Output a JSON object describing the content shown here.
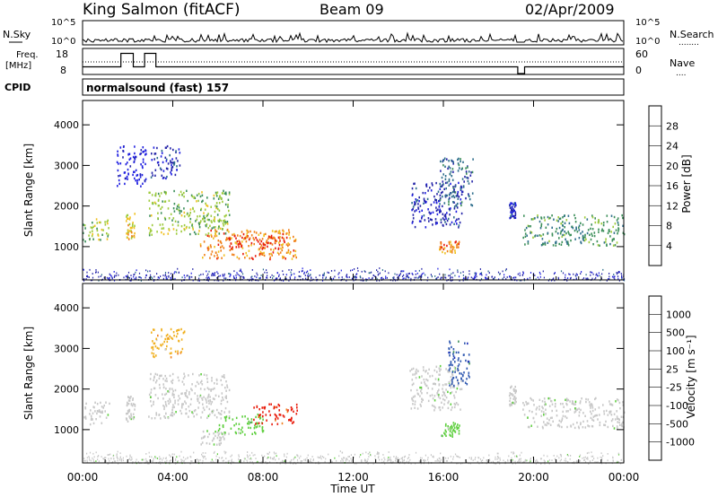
{
  "header": {
    "station": "King Salmon (fitACF)",
    "beam": "Beam 09",
    "date": "02/Apr/2009",
    "cpid_label": "CPID",
    "cpid_value": "normalsound (fast) 157"
  },
  "labels": {
    "nsky": "N.Sky",
    "nsearch": "N.Search",
    "nsearch_dots": "........",
    "freq": "Freq.",
    "mhz": "[MHz]",
    "nave": "Nave",
    "nave_dots": "....",
    "nsky_ticks": [
      "10^5",
      "10^0"
    ],
    "nsearch_ticks": [
      "10^5",
      "10^0"
    ],
    "freq_ticks": [
      "18",
      "8"
    ],
    "nave_ticks": [
      "60",
      "0"
    ]
  },
  "colors": {
    "power": [
      "#1f1fe0",
      "#2424a8",
      "#2e6e8c",
      "#3c8f5a",
      "#9ecb3c",
      "#f0c020",
      "#f07f18",
      "#e81c0c"
    ],
    "velocity": [
      "#1f2fb8",
      "#2f58b0",
      "#3f8f5a",
      "#5fcf3f",
      "#c8c8c8",
      "#c8c8c8",
      "#f0b020",
      "#f08020",
      "#e81c0c"
    ],
    "ground_scatter": "#c0c0c0"
  },
  "chart_data": [
    {
      "type": "heatmap",
      "panel": "power",
      "ylabel": "Slant Range [km]",
      "colorbar_label": "Power [dB]",
      "colorbar_ticks": [
        "4",
        "8",
        "12",
        "16",
        "20",
        "24",
        "28"
      ],
      "xlim": [
        0,
        24
      ],
      "ylim": [
        180,
        4600
      ],
      "y_ticks": [
        "1000",
        "2000",
        "3000",
        "4000"
      ],
      "regions": [
        {
          "t0": 0.0,
          "t1": 1.2,
          "r0": 1150,
          "r1": 1700,
          "level": 4
        },
        {
          "t0": 1.9,
          "t1": 2.3,
          "r0": 1200,
          "r1": 1850,
          "level": 5
        },
        {
          "t0": 2.9,
          "t1": 6.5,
          "r0": 1300,
          "r1": 2400,
          "level": 4
        },
        {
          "t0": 3.0,
          "t1": 4.3,
          "r0": 2700,
          "r1": 3500,
          "level": 1
        },
        {
          "t0": 1.5,
          "t1": 2.8,
          "r0": 2500,
          "r1": 3500,
          "level": 0
        },
        {
          "t0": 5.2,
          "t1": 9.5,
          "r0": 700,
          "r1": 1450,
          "level": 6
        },
        {
          "t0": 6.5,
          "t1": 9.0,
          "r0": 950,
          "r1": 1300,
          "level": 7
        },
        {
          "t0": 14.5,
          "t1": 16.8,
          "r0": 1500,
          "r1": 2600,
          "level": 1
        },
        {
          "t0": 15.8,
          "t1": 17.3,
          "r0": 2000,
          "r1": 3200,
          "level": 2
        },
        {
          "t0": 15.8,
          "t1": 16.7,
          "r0": 850,
          "r1": 1150,
          "level": 6
        },
        {
          "t0": 18.9,
          "t1": 19.2,
          "r0": 1700,
          "r1": 2100,
          "level": 1
        },
        {
          "t0": 19.5,
          "t1": 24.0,
          "r0": 1050,
          "r1": 1800,
          "level": 3
        }
      ],
      "noise_band": {
        "r0": 180,
        "r1": 500
      }
    },
    {
      "type": "heatmap",
      "panel": "velocity",
      "xlabel": "Time UT",
      "ylabel": "Slant Range [km]",
      "colorbar_label": "Velocity [m s⁻¹]",
      "colorbar_ticks": [
        "1000",
        "500",
        "100",
        "25",
        "-25",
        "-100",
        "-500",
        "-1000"
      ],
      "xlim": [
        0,
        24
      ],
      "ylim": [
        180,
        4600
      ],
      "x_ticks": [
        "00:00",
        "04:00",
        "08:00",
        "12:00",
        "16:00",
        "20:00",
        "00:00"
      ],
      "y_ticks": [
        "1000",
        "2000",
        "3000",
        "4000"
      ],
      "regions": [
        {
          "t0": 0.0,
          "t1": 1.2,
          "r0": 1150,
          "r1": 1700,
          "cls": 4
        },
        {
          "t0": 1.9,
          "t1": 2.3,
          "r0": 1200,
          "r1": 1850,
          "cls": 4
        },
        {
          "t0": 2.9,
          "t1": 6.5,
          "r0": 1300,
          "r1": 2400,
          "cls": 4
        },
        {
          "t0": 3.0,
          "t1": 4.5,
          "r0": 2800,
          "r1": 3500,
          "cls": 6
        },
        {
          "t0": 5.2,
          "t1": 6.5,
          "r0": 650,
          "r1": 1000,
          "cls": 4
        },
        {
          "t0": 6.0,
          "t1": 8.0,
          "r0": 900,
          "r1": 1400,
          "cls": 3
        },
        {
          "t0": 7.5,
          "t1": 9.5,
          "r0": 1150,
          "r1": 1650,
          "cls": 8
        },
        {
          "t0": 14.5,
          "t1": 16.8,
          "r0": 1500,
          "r1": 2600,
          "cls": 4
        },
        {
          "t0": 16.2,
          "t1": 17.2,
          "r0": 2100,
          "r1": 3200,
          "cls": 1
        },
        {
          "t0": 15.9,
          "t1": 16.7,
          "r0": 850,
          "r1": 1200,
          "cls": 3
        },
        {
          "t0": 18.9,
          "t1": 19.2,
          "r0": 1600,
          "r1": 2100,
          "cls": 4
        },
        {
          "t0": 19.5,
          "t1": 24.0,
          "r0": 1050,
          "r1": 1800,
          "cls": 4
        }
      ],
      "noise_band": {
        "r0": 180,
        "r1": 500
      }
    },
    {
      "type": "line",
      "panel": "frequency",
      "series": [
        {
          "name": "Freq.",
          "x": [
            0,
            1.7,
            1.7,
            2.25,
            2.25,
            2.75,
            2.75,
            3.25,
            3.25,
            19.3,
            19.3,
            19.6,
            19.6,
            24
          ],
          "y": [
            11,
            11,
            17,
            17,
            11,
            11,
            17,
            17,
            11,
            11,
            8,
            8,
            11,
            11
          ]
        }
      ],
      "ylim": [
        8,
        18
      ]
    },
    {
      "type": "line",
      "panel": "n-sky",
      "series": [
        {
          "name": "N.Sky",
          "x": [
            0,
            24
          ],
          "y": [
            0,
            0
          ]
        }
      ]
    }
  ]
}
